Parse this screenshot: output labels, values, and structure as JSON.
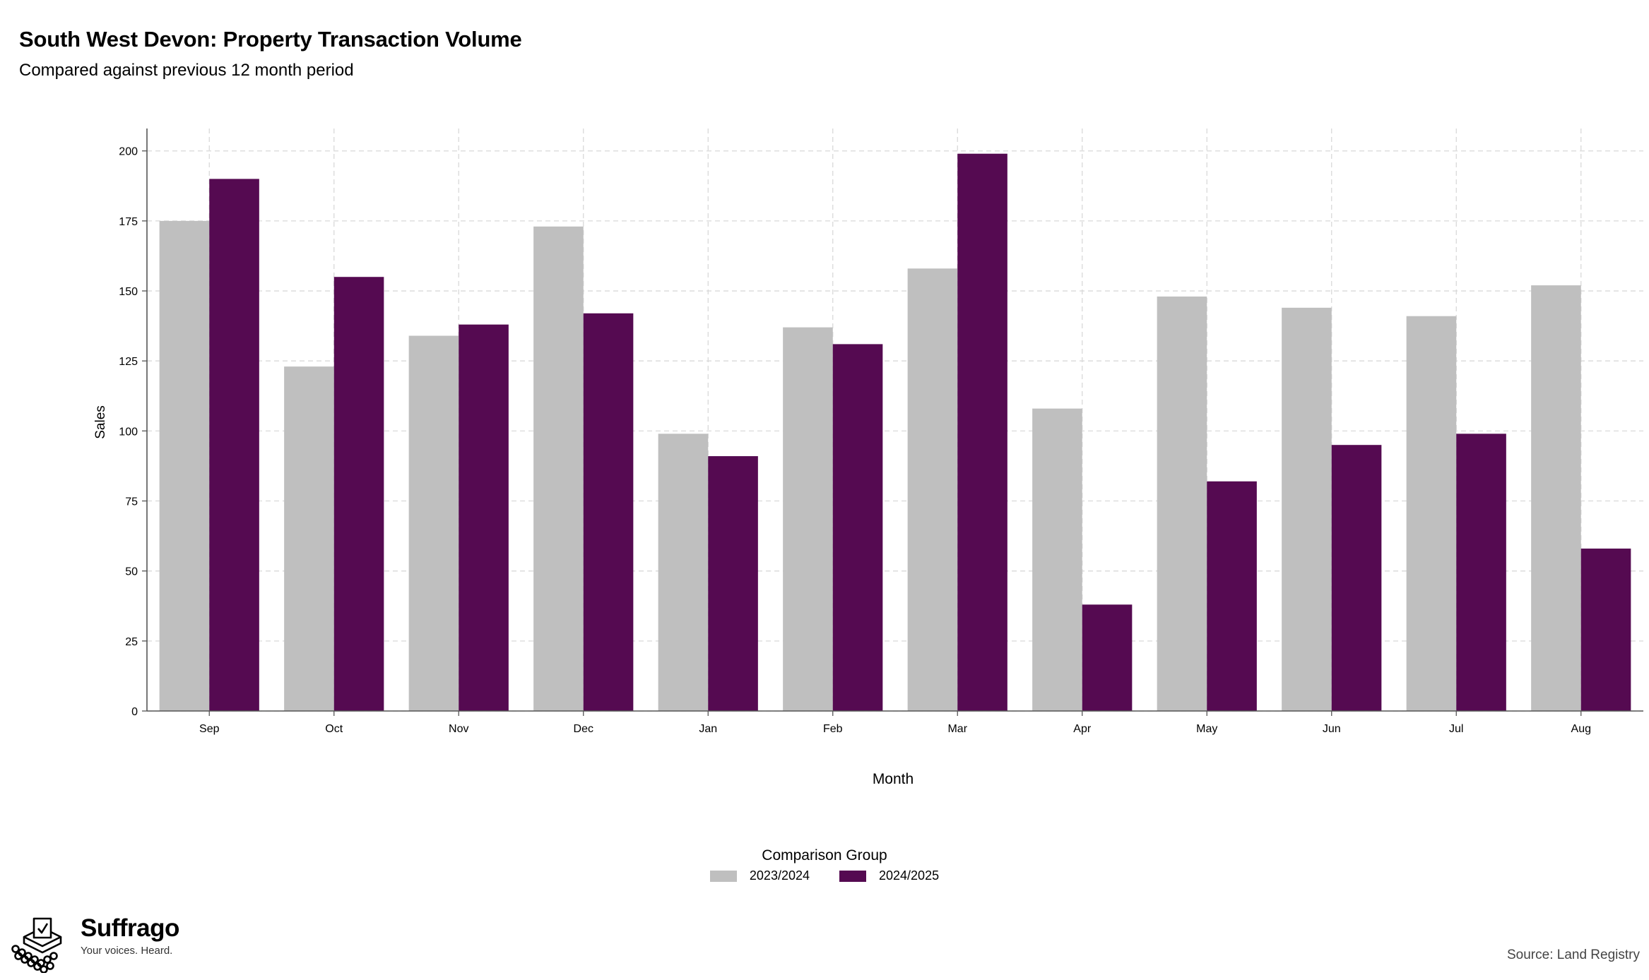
{
  "header": {
    "title": "South West Devon: Property Transaction Volume",
    "subtitle": "Compared against previous 12 month period"
  },
  "chart_data": {
    "type": "bar",
    "xlabel": "Month",
    "ylabel": "Sales",
    "ylim": [
      0,
      208
    ],
    "yticks": [
      0,
      25,
      50,
      75,
      100,
      125,
      150,
      175,
      200
    ],
    "grid": true,
    "legend_position": "bottom",
    "legend_title": "Comparison Group",
    "categories": [
      "Sep",
      "Oct",
      "Nov",
      "Dec",
      "Jan",
      "Feb",
      "Mar",
      "Apr",
      "May",
      "Jun",
      "Jul",
      "Aug"
    ],
    "series": [
      {
        "name": "2023/2024",
        "color": "#bfbfbf",
        "values": [
          175,
          123,
          134,
          173,
          99,
          137,
          158,
          108,
          148,
          144,
          141,
          152
        ]
      },
      {
        "name": "2024/2025",
        "color": "#550a51",
        "values": [
          190,
          155,
          138,
          142,
          91,
          131,
          199,
          38,
          82,
          95,
          99,
          58
        ]
      }
    ]
  },
  "brand": {
    "name": "Suffrago",
    "tagline": "Your voices. Heard."
  },
  "footer": {
    "source": "Source: Land Registry"
  }
}
